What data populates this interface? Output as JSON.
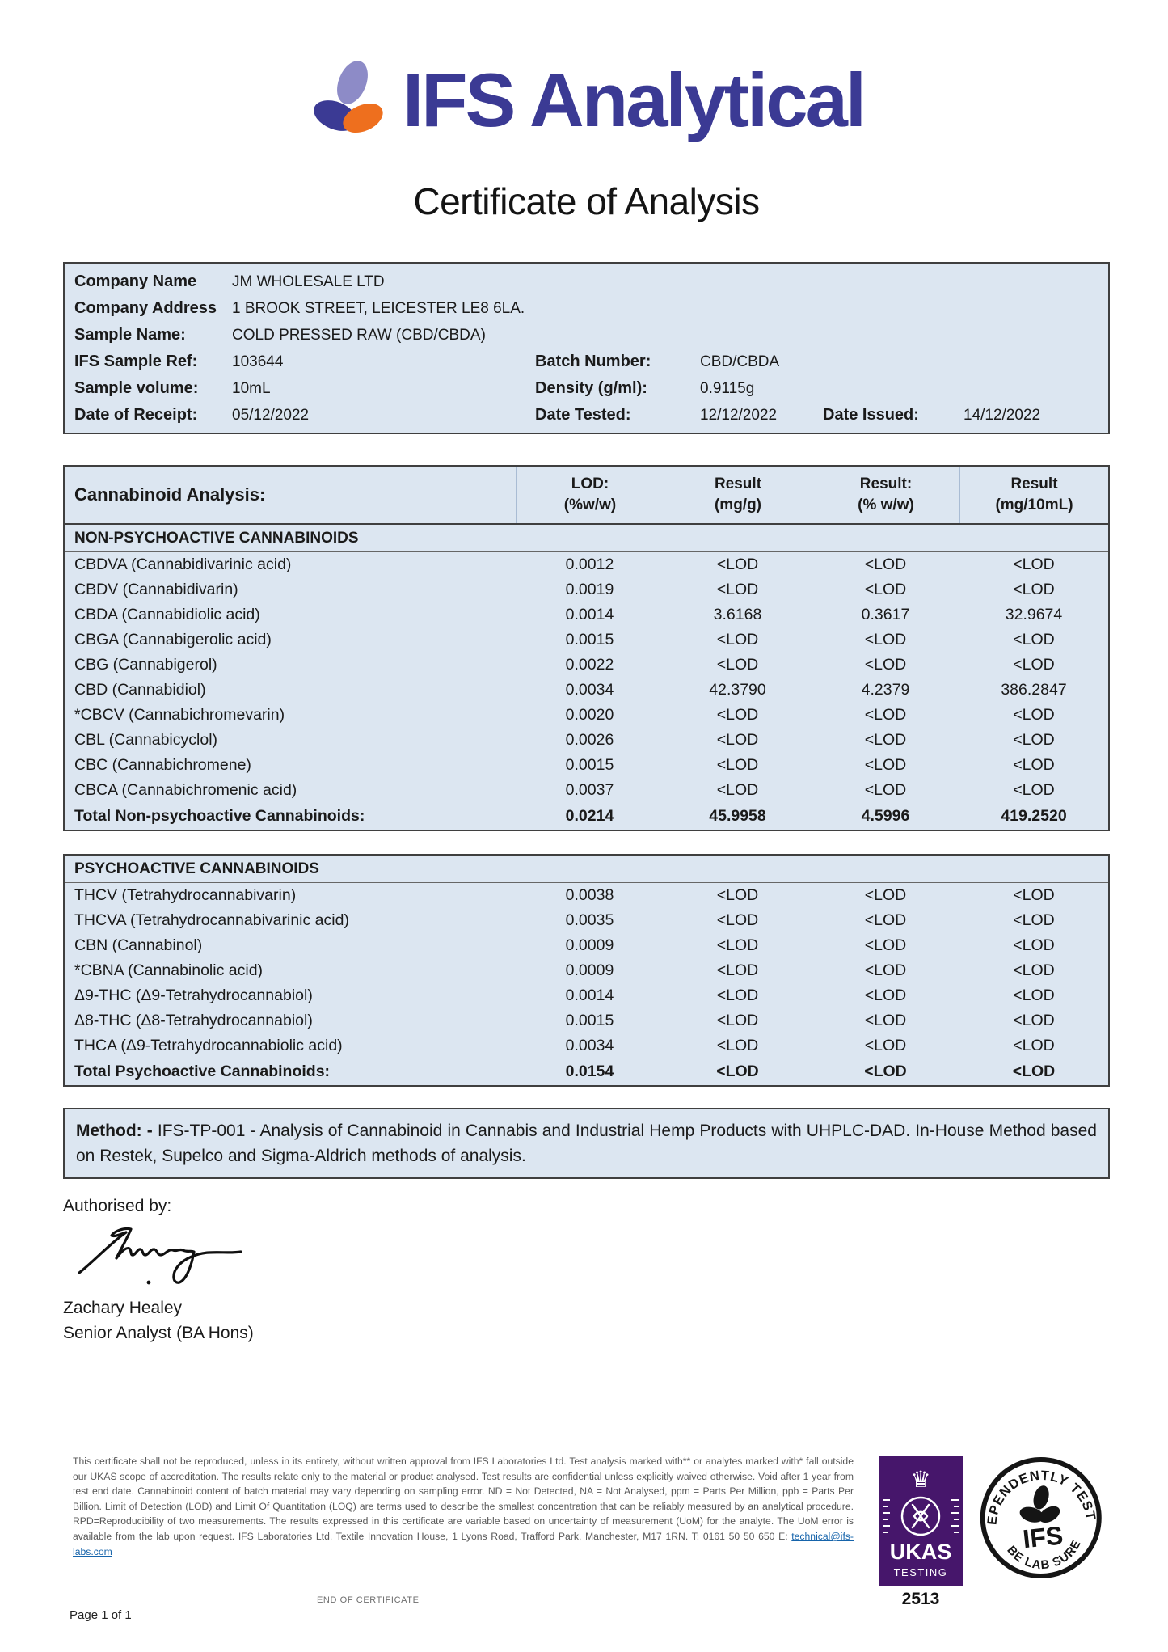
{
  "brand": {
    "logo_text": "IFS Analytical",
    "colors": {
      "indigo": "#3b3a94",
      "periwinkle": "#8d8bc7",
      "orange": "#ee6f1e",
      "table_blue": "#dce6f1",
      "ukas_purple": "#46166b"
    }
  },
  "title": "Certificate of Analysis",
  "sample_info": {
    "rows": [
      [
        {
          "label": "Company Name",
          "value": "JM WHOLESALE LTD"
        }
      ],
      [
        {
          "label": "Company Address",
          "value": "1 BROOK STREET, LEICESTER LE8 6LA."
        }
      ],
      [
        {
          "label": "Sample Name:",
          "value": "COLD PRESSED RAW (CBD/CBDA)"
        }
      ],
      [
        {
          "label": "IFS Sample Ref:",
          "value": "103644"
        },
        {
          "label": "Batch Number:",
          "value": "CBD/CBDA"
        }
      ],
      [
        {
          "label": "Sample volume:",
          "value": "10mL"
        },
        {
          "label": "Density (g/ml):",
          "value": "0.9115g"
        }
      ],
      [
        {
          "label": "Date of Receipt:",
          "value": "05/12/2022"
        },
        {
          "label": "Date Tested:",
          "value": "12/12/2022"
        },
        {
          "label": "Date Issued:",
          "value": "14/12/2022"
        }
      ]
    ]
  },
  "analysis": {
    "title": "Cannabinoid Analysis:",
    "columns": [
      {
        "l1": "LOD:",
        "l2": "(%w/w)"
      },
      {
        "l1": "Result",
        "l2": "(mg/g)"
      },
      {
        "l1": "Result:",
        "l2": "(% w/w)"
      },
      {
        "l1": "Result",
        "l2": "(mg/10mL)"
      }
    ],
    "non_psychoactive": {
      "section_title": "NON-PSYCHOACTIVE CANNABINOIDS",
      "rows": [
        {
          "name": "CBDVA (Cannabidivarinic acid)",
          "lod": "0.0012",
          "mg_g": "<LOD",
          "pct": "<LOD",
          "mg_10ml": "<LOD"
        },
        {
          "name": "CBDV (Cannabidivarin)",
          "lod": "0.0019",
          "mg_g": "<LOD",
          "pct": "<LOD",
          "mg_10ml": "<LOD"
        },
        {
          "name": "CBDA (Cannabidiolic acid)",
          "lod": "0.0014",
          "mg_g": "3.6168",
          "pct": "0.3617",
          "mg_10ml": "32.9674"
        },
        {
          "name": "CBGA (Cannabigerolic acid)",
          "lod": "0.0015",
          "mg_g": "<LOD",
          "pct": "<LOD",
          "mg_10ml": "<LOD"
        },
        {
          "name": "CBG (Cannabigerol)",
          "lod": "0.0022",
          "mg_g": "<LOD",
          "pct": "<LOD",
          "mg_10ml": "<LOD"
        },
        {
          "name": "CBD (Cannabidiol)",
          "lod": "0.0034",
          "mg_g": "42.3790",
          "pct": "4.2379",
          "mg_10ml": "386.2847"
        },
        {
          "name": "*CBCV (Cannabichromevarin)",
          "lod": "0.0020",
          "mg_g": "<LOD",
          "pct": "<LOD",
          "mg_10ml": "<LOD"
        },
        {
          "name": "CBL (Cannabicyclol)",
          "lod": "0.0026",
          "mg_g": "<LOD",
          "pct": "<LOD",
          "mg_10ml": "<LOD"
        },
        {
          "name": "CBC (Cannabichromene)",
          "lod": "0.0015",
          "mg_g": "<LOD",
          "pct": "<LOD",
          "mg_10ml": "<LOD"
        },
        {
          "name": "CBCA (Cannabichromenic acid)",
          "lod": "0.0037",
          "mg_g": "<LOD",
          "pct": "<LOD",
          "mg_10ml": "<LOD"
        }
      ],
      "total": {
        "name": "Total Non-psychoactive Cannabinoids:",
        "lod": "0.0214",
        "mg_g": "45.9958",
        "pct": "4.5996",
        "mg_10ml": "419.2520"
      }
    },
    "psychoactive": {
      "section_title": "PSYCHOACTIVE CANNABINOIDS",
      "rows": [
        {
          "name": "THCV (Tetrahydrocannabivarin)",
          "lod": "0.0038",
          "mg_g": "<LOD",
          "pct": "<LOD",
          "mg_10ml": "<LOD"
        },
        {
          "name": "THCVA (Tetrahydrocannabivarinic acid)",
          "lod": "0.0035",
          "mg_g": "<LOD",
          "pct": "<LOD",
          "mg_10ml": "<LOD"
        },
        {
          "name": "CBN (Cannabinol)",
          "lod": "0.0009",
          "mg_g": "<LOD",
          "pct": "<LOD",
          "mg_10ml": "<LOD"
        },
        {
          "name": "*CBNA (Cannabinolic acid)",
          "lod": "0.0009",
          "mg_g": "<LOD",
          "pct": "<LOD",
          "mg_10ml": "<LOD"
        },
        {
          "name": "Δ9-THC (Δ9-Tetrahydrocannabiol)",
          "lod": "0.0014",
          "mg_g": "<LOD",
          "pct": "<LOD",
          "mg_10ml": "<LOD"
        },
        {
          "name": "Δ8-THC (Δ8-Tetrahydrocannabiol)",
          "lod": "0.0015",
          "mg_g": "<LOD",
          "pct": "<LOD",
          "mg_10ml": "<LOD"
        },
        {
          "name": "THCA (Δ9-Tetrahydrocannabiolic acid)",
          "lod": "0.0034",
          "mg_g": "<LOD",
          "pct": "<LOD",
          "mg_10ml": "<LOD"
        }
      ],
      "total": {
        "name": "Total Psychoactive Cannabinoids:",
        "lod": "0.0154",
        "mg_g": "<LOD",
        "pct": "<LOD",
        "mg_10ml": "<LOD"
      }
    }
  },
  "method": {
    "label": "Method: -",
    "text": "IFS-TP-001 - Analysis of Cannabinoid in Cannabis and Industrial Hemp Products with UHPLC-DAD. In-House Method based on Restek, Supelco and Sigma-Aldrich methods of analysis."
  },
  "authorisation": {
    "heading": "Authorised by:",
    "name": "Zachary Healey",
    "role": "Senior Analyst (BA Hons)"
  },
  "footer": {
    "disclaimer": "This certificate shall not be reproduced, unless in its entirety, without written approval from IFS Laboratories Ltd. Test analysis marked with** or analytes marked with* fall outside our UKAS scope of accreditation. The results relate only to the material or product analysed. Test results are confidential unless explicitly waived otherwise. Void after 1 year from test end date. Cannabinoid content of batch material may vary depending on sampling error. ND = Not Detected, NA = Not Analysed, ppm = Parts Per Million, ppb = Parts Per Billion. Limit of Detection (LOD) and Limit Of Quantitation (LOQ) are terms used to describe the smallest concentration that can be reliably measured by an analytical procedure. RPD=Reproducibility of two measurements. The results expressed in this certificate are variable based on uncertainty of measurement (UoM) for the analyte. The UoM error is available from the lab upon request. IFS Laboratories Ltd. Textile Innovation House, 1 Lyons Road, Trafford Park, Manchester, M17 1RN. T: 0161 50 50 650 E: ",
    "email": "technical@ifs-labs.com",
    "ukas": {
      "name": "UKAS",
      "sub": "TESTING",
      "number": "2513"
    },
    "stamp": {
      "top": "INDEPENDENTLY TESTED",
      "bottom": "BE LAB SURE",
      "center": "IFS"
    },
    "end_text": "END OF CERTIFICATE",
    "page_label": "Page 1 of 1"
  }
}
